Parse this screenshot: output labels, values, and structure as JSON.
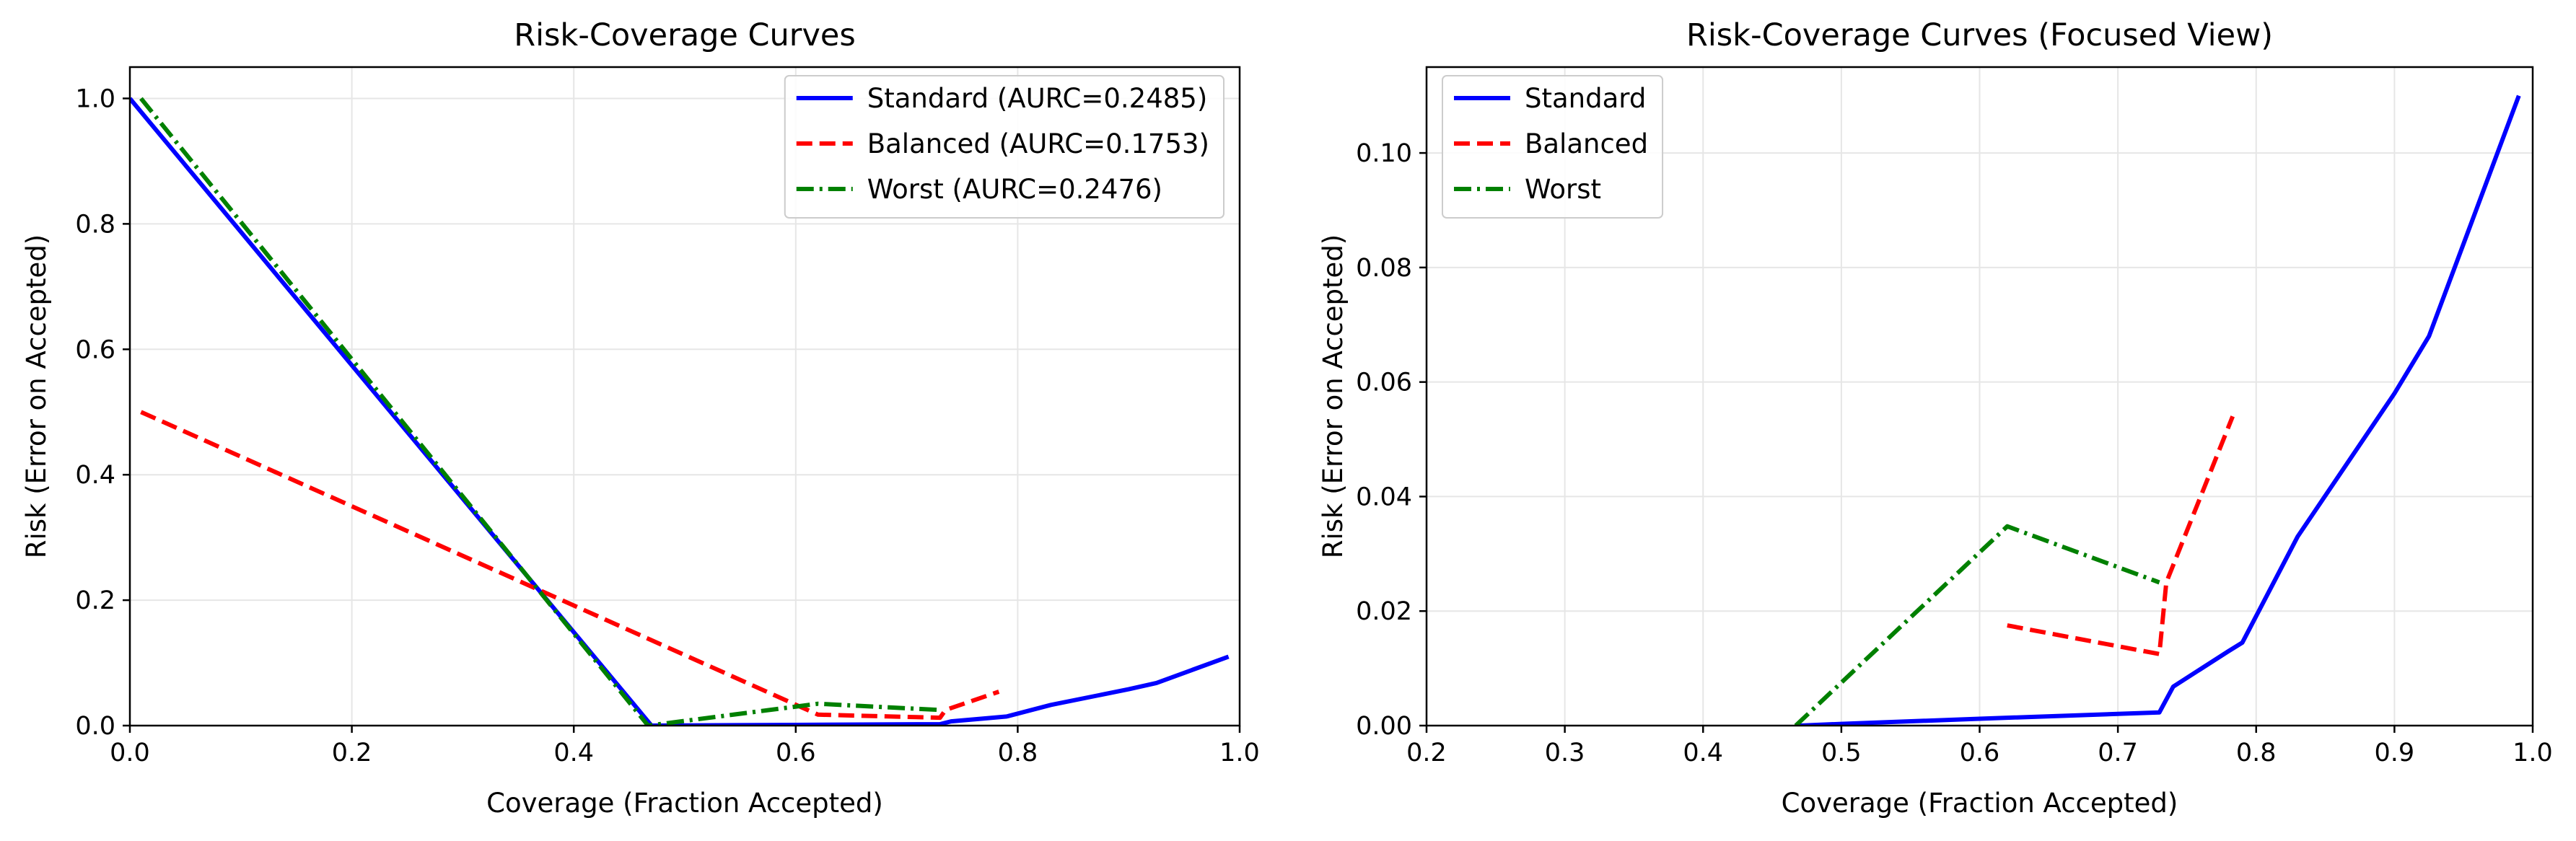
{
  "chart_data": [
    {
      "type": "line",
      "title": "Risk-Coverage Curves",
      "xlabel": "Coverage (Fraction Accepted)",
      "ylabel": "Risk (Error on Accepted)",
      "xlim": [
        0.0,
        1.0
      ],
      "ylim": [
        0.0,
        1.05
      ],
      "xticks": [
        0.0,
        0.2,
        0.4,
        0.6,
        0.8,
        1.0
      ],
      "xtick_labels": [
        "0.0",
        "0.2",
        "0.4",
        "0.6",
        "0.8",
        "1.0"
      ],
      "yticks": [
        0.0,
        0.2,
        0.4,
        0.6,
        0.8,
        1.0
      ],
      "ytick_labels": [
        "0.0",
        "0.2",
        "0.4",
        "0.6",
        "0.8",
        "1.0"
      ],
      "grid": true,
      "legend_position": "top-right",
      "series": [
        {
          "name": "Standard (AURC=0.2485)",
          "color": "#0000ff",
          "style": "solid",
          "x": [
            0.0,
            0.47,
            0.5,
            0.6,
            0.73,
            0.74,
            0.78,
            0.79,
            0.83,
            0.9,
            0.925,
            0.99
          ],
          "y": [
            1.0,
            0.0,
            0.0003,
            0.0012,
            0.0023,
            0.0068,
            0.013,
            0.0145,
            0.033,
            0.058,
            0.068,
            0.11
          ]
        },
        {
          "name": "Balanced (AURC=0.1753)",
          "color": "#ff0000",
          "style": "dashed",
          "x": [
            0.01,
            0.62,
            0.73,
            0.735,
            0.783
          ],
          "y": [
            0.5,
            0.0175,
            0.0125,
            0.025,
            0.054
          ]
        },
        {
          "name": "Worst (AURC=0.2476)",
          "color": "#008000",
          "style": "dashdot",
          "x": [
            0.01,
            0.467,
            0.62,
            0.73
          ],
          "y": [
            1.0,
            0.0,
            0.0348,
            0.025
          ]
        }
      ]
    },
    {
      "type": "line",
      "title": "Risk-Coverage Curves (Focused View)",
      "xlabel": "Coverage (Fraction Accepted)",
      "ylabel": "Risk (Error on Accepted)",
      "xlim": [
        0.2,
        1.0
      ],
      "ylim": [
        0.0,
        0.115
      ],
      "xticks": [
        0.2,
        0.3,
        0.4,
        0.5,
        0.6,
        0.7,
        0.8,
        0.9,
        1.0
      ],
      "xtick_labels": [
        "0.2",
        "0.3",
        "0.4",
        "0.5",
        "0.6",
        "0.7",
        "0.8",
        "0.9",
        "1.0"
      ],
      "yticks": [
        0.0,
        0.02,
        0.04,
        0.06,
        0.08,
        0.1
      ],
      "ytick_labels": [
        "0.00",
        "0.02",
        "0.04",
        "0.06",
        "0.08",
        "0.10"
      ],
      "grid": true,
      "legend_position": "top-left",
      "series": [
        {
          "name": "Standard",
          "color": "#0000ff",
          "style": "solid",
          "x": [
            0.47,
            0.5,
            0.6,
            0.73,
            0.74,
            0.78,
            0.79,
            0.83,
            0.9,
            0.925,
            0.99
          ],
          "y": [
            0.0,
            0.0003,
            0.0012,
            0.0023,
            0.0068,
            0.013,
            0.0145,
            0.033,
            0.058,
            0.068,
            0.11
          ]
        },
        {
          "name": "Balanced",
          "color": "#ff0000",
          "style": "dashed",
          "x": [
            0.62,
            0.73,
            0.735,
            0.783
          ],
          "y": [
            0.0175,
            0.0125,
            0.025,
            0.054
          ]
        },
        {
          "name": "Worst",
          "color": "#008000",
          "style": "dashdot",
          "x": [
            0.467,
            0.62,
            0.73
          ],
          "y": [
            0.0,
            0.0348,
            0.025
          ]
        }
      ]
    }
  ]
}
